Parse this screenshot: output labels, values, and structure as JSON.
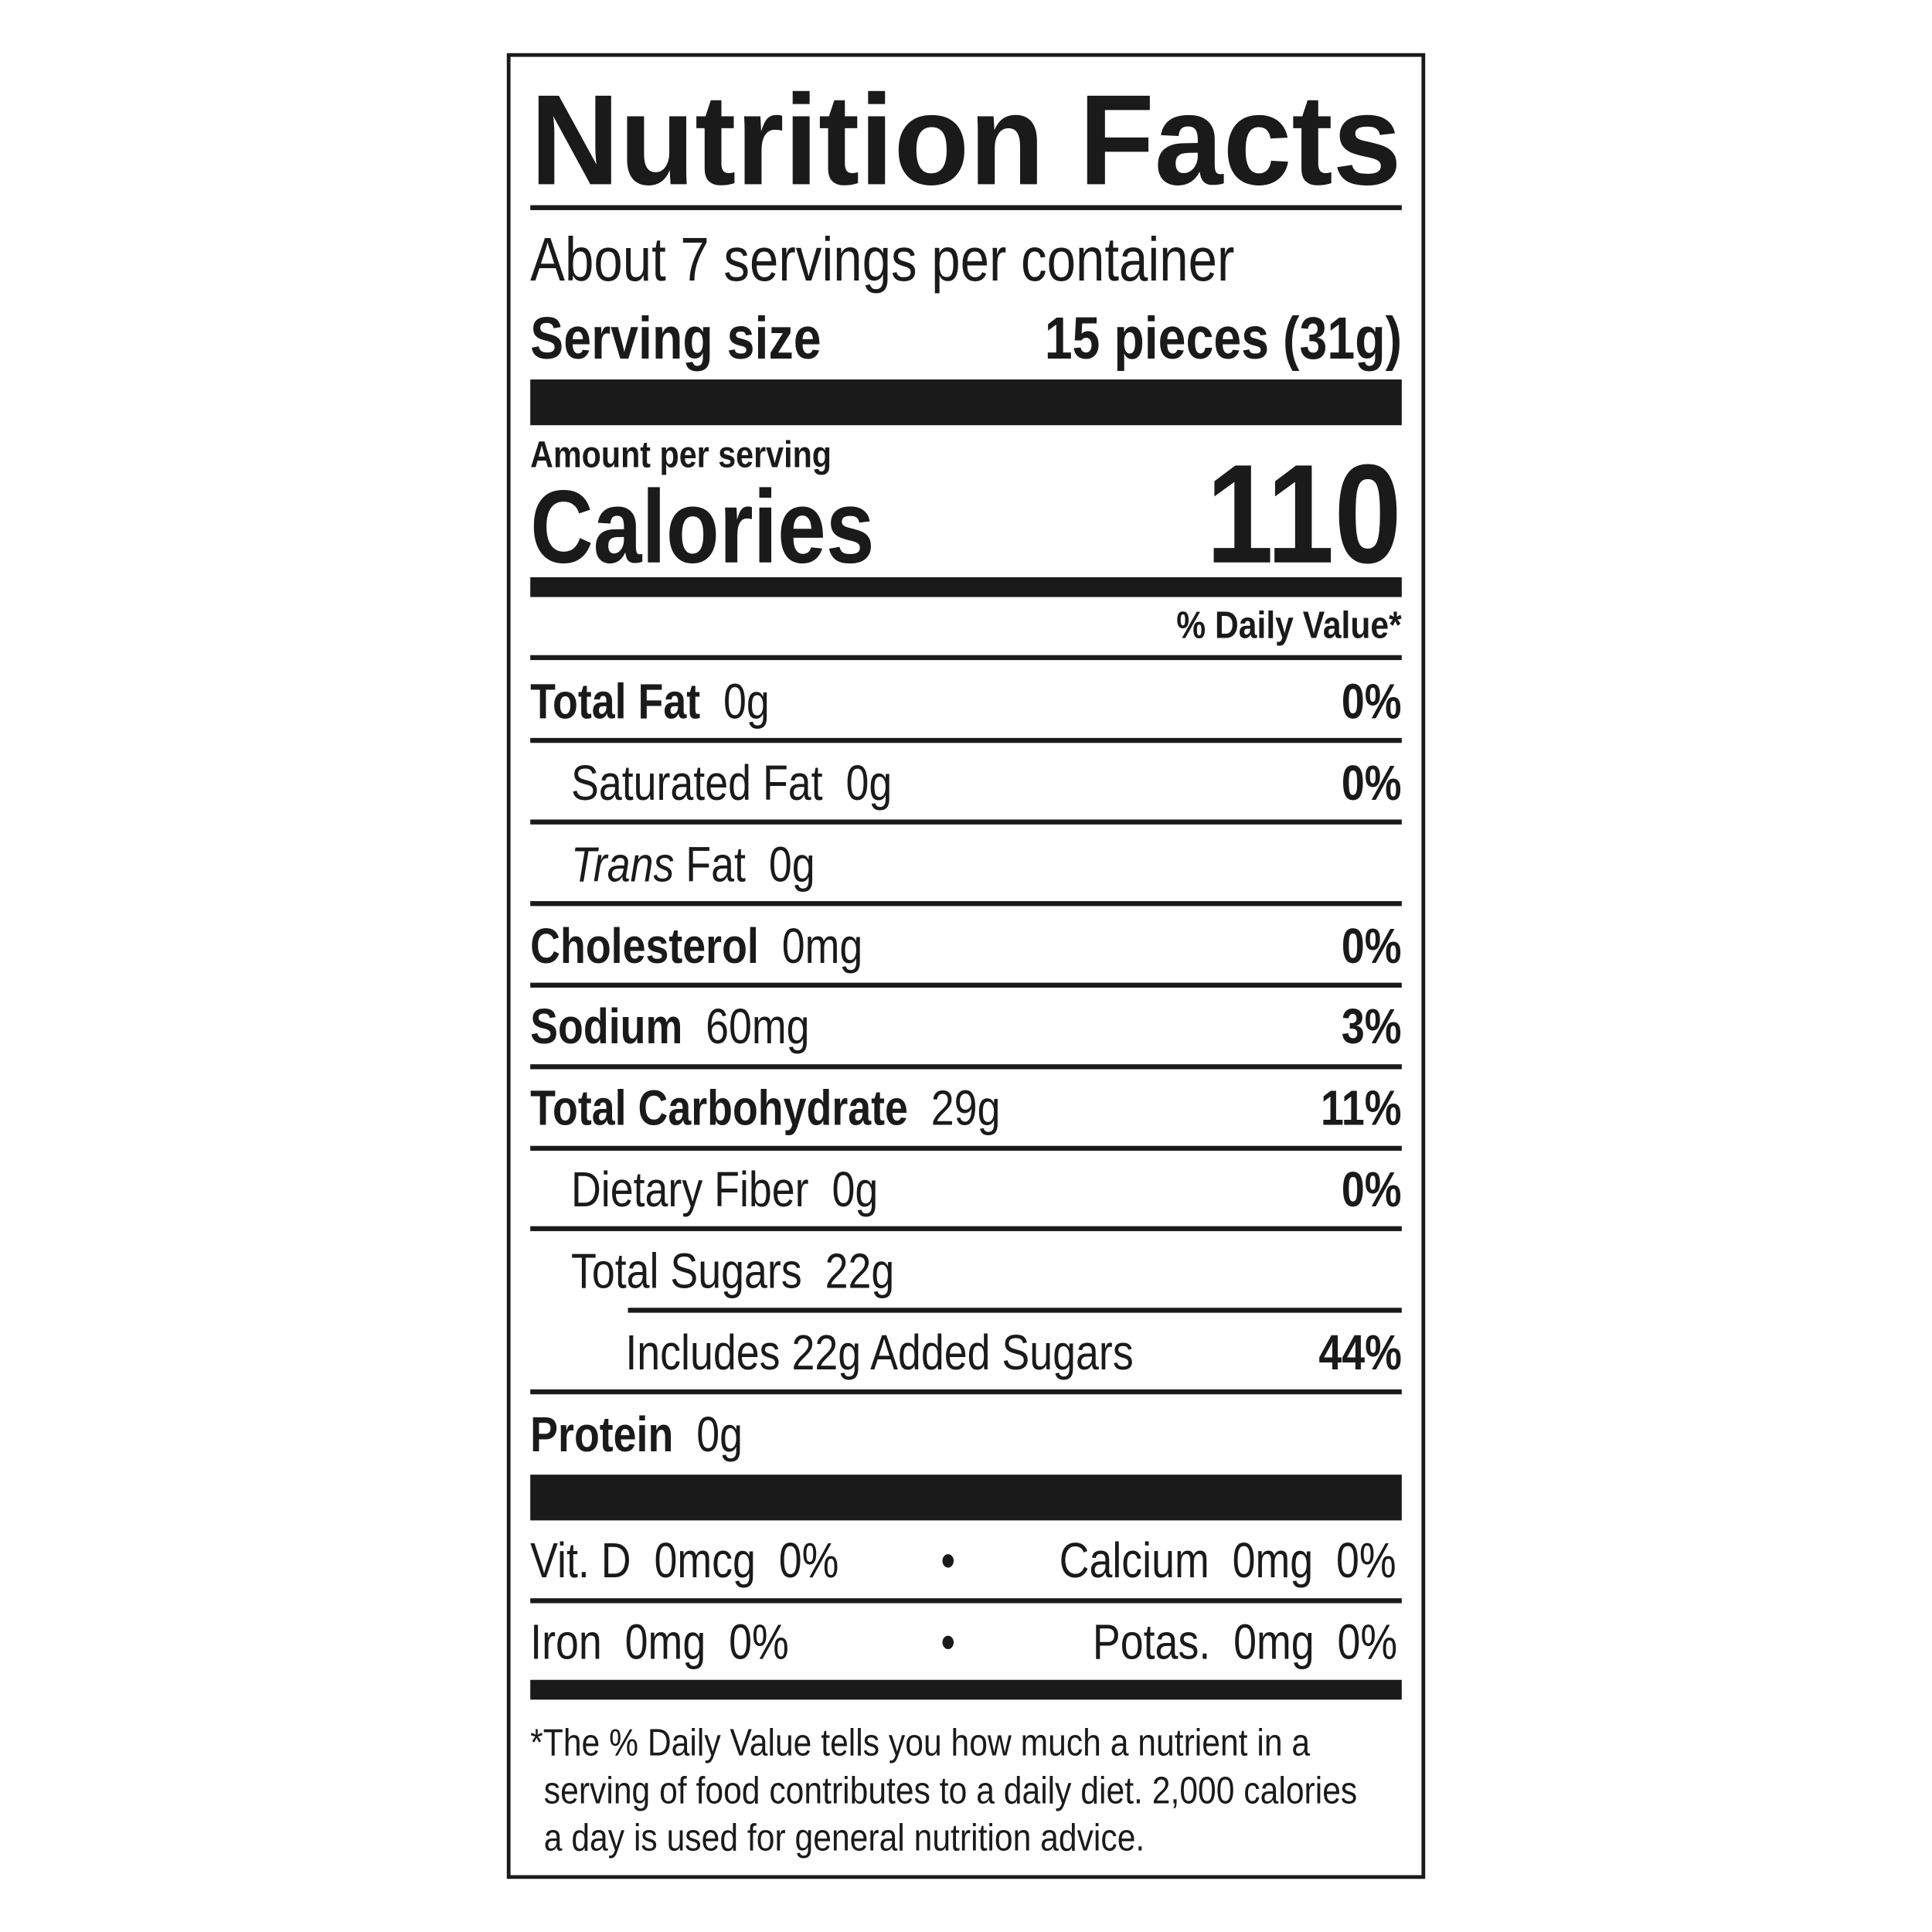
{
  "title": "Nutrition Facts",
  "servings_per_container": "About 7 servings per container",
  "serving_size": {
    "label": "Serving size",
    "value": "15 pieces (31g)"
  },
  "amount_per_serving": "Amount per serving",
  "calories": {
    "label": "Calories",
    "value": "110"
  },
  "daily_value_header": "% Daily Value*",
  "nutrients": [
    {
      "name": "Total Fat",
      "amount": "0g",
      "dv": "0%"
    },
    {
      "name": "Saturated Fat",
      "amount": "0g",
      "dv": "0%"
    },
    {
      "name_italic": "Trans",
      "name": "Fat",
      "amount": "0g"
    },
    {
      "name": "Cholesterol",
      "amount": "0mg",
      "dv": "0%"
    },
    {
      "name": "Sodium",
      "amount": "60mg",
      "dv": "3%"
    },
    {
      "name": "Total Carbohydrate",
      "amount": "29g",
      "dv": "11%"
    },
    {
      "name": "Dietary Fiber",
      "amount": "0g",
      "dv": "0%"
    },
    {
      "name": "Total Sugars",
      "amount": "22g"
    },
    {
      "name": "Includes 22g Added Sugars",
      "dv": "44%"
    },
    {
      "name": "Protein",
      "amount": "0g"
    }
  ],
  "micros": [
    {
      "left": "Vit. D  0mcg  0%",
      "right": "Calcium  0mg  0%"
    },
    {
      "left": "Iron  0mg  0%",
      "right": "Potas.  0mg  0%"
    }
  ],
  "bullet": "•",
  "footnote": [
    "*The % Daily Value tells you how much a nutrient in a",
    "serving of food contributes to a daily diet. 2,000 calories",
    "a day is used for general nutrition advice."
  ]
}
